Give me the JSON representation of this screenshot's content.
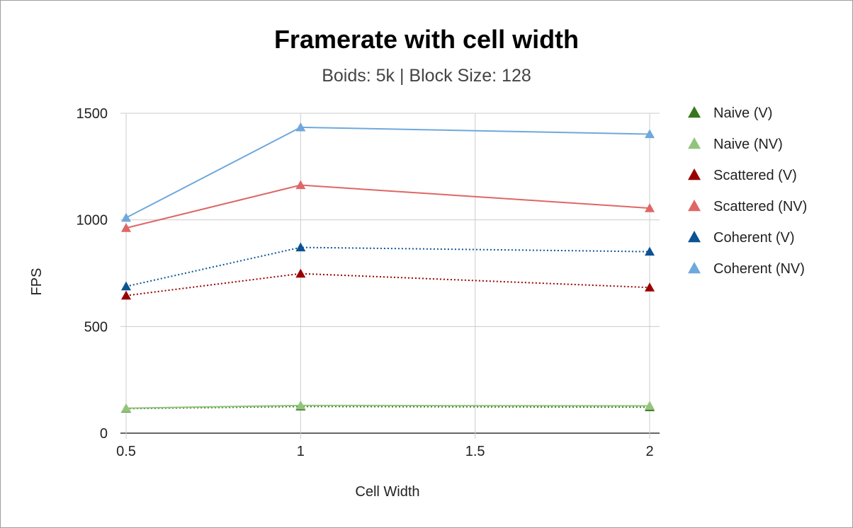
{
  "chart_data": {
    "type": "line",
    "title": "Framerate with cell width",
    "subtitle": "Boids: 5k | Block Size: 128",
    "xlabel": "Cell Width",
    "ylabel": "FPS",
    "x": [
      0.5,
      1,
      2
    ],
    "xticks": [
      0.5,
      1,
      1.5,
      2
    ],
    "xtick_labels": [
      "0.5",
      "1",
      "1.5",
      "2"
    ],
    "xlim": [
      0.5,
      2
    ],
    "yticks": [
      0,
      500,
      1000,
      1500
    ],
    "ytick_labels": [
      "0",
      "500",
      "1000",
      "1500"
    ],
    "ylim": [
      0,
      1500
    ],
    "grid": true,
    "legend_position": "right",
    "series": [
      {
        "name": "Naive (V)",
        "values": [
          115,
          125,
          122
        ],
        "color": "#38761d",
        "dash": "dotted"
      },
      {
        "name": "Naive (NV)",
        "values": [
          117,
          130,
          128
        ],
        "color": "#93c47d",
        "dash": "solid"
      },
      {
        "name": "Scattered (V)",
        "values": [
          645,
          748,
          683
        ],
        "color": "#990000",
        "dash": "dotted"
      },
      {
        "name": "Scattered (NV)",
        "values": [
          962,
          1163,
          1055
        ],
        "color": "#e06666",
        "dash": "solid"
      },
      {
        "name": "Coherent (V)",
        "values": [
          688,
          871,
          851
        ],
        "color": "#0b5394",
        "dash": "dotted"
      },
      {
        "name": "Coherent (NV)",
        "values": [
          1010,
          1434,
          1402
        ],
        "color": "#6fa8dc",
        "dash": "solid"
      }
    ]
  }
}
